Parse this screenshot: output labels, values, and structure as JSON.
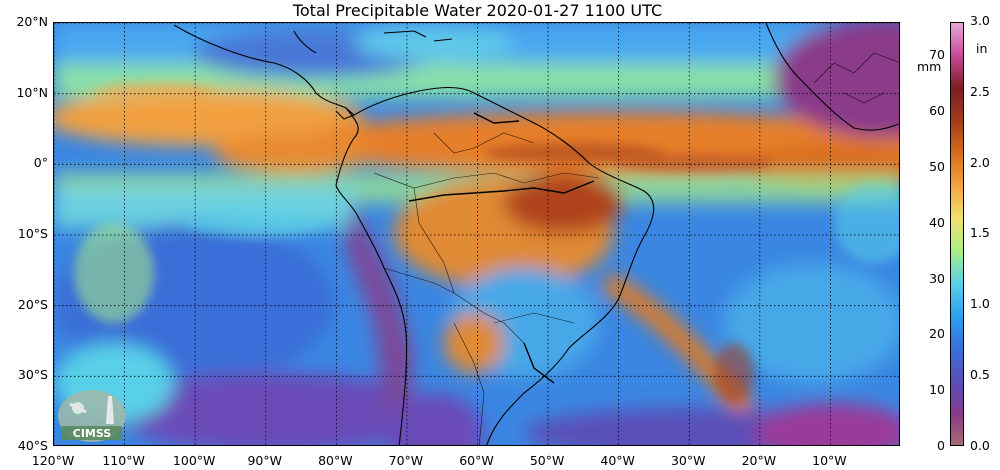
{
  "title": "Total Precipitable Water  2020-01-27 1100 UTC",
  "map": {
    "lat_labels": [
      "20°N",
      "10°N",
      "0°",
      "10°S",
      "20°S",
      "30°S",
      "40°S"
    ],
    "lon_labels": [
      "120°W",
      "110°W",
      "100°W",
      "90°W",
      "80°W",
      "70°W",
      "60°W",
      "50°W",
      "40°W",
      "30°W",
      "20°W",
      "10°W"
    ],
    "lat_range": [
      -40,
      20
    ],
    "lon_range": [
      -120,
      0
    ]
  },
  "colorbar": {
    "mm_ticks": [
      "0",
      "10",
      "20",
      "30",
      "40",
      "50",
      "60",
      "70"
    ],
    "mm_unit": "mm",
    "in_ticks": [
      "0.0",
      "0.5",
      "1.0",
      "1.5",
      "2.0",
      "2.5",
      "3.0"
    ],
    "in_unit": "in",
    "colors": [
      "#a87070",
      "#8a3a8a",
      "#5a4fb8",
      "#3a6ed8",
      "#2aa0ee",
      "#58d0e8",
      "#a8ee88",
      "#f2e070",
      "#f4a440",
      "#d86c1c",
      "#a33c1c",
      "#7a1e22",
      "#c84a9a",
      "#e6a8d8"
    ]
  },
  "logo": {
    "text": "CIMSS",
    "icon": "cimss-satellite-icon"
  }
}
